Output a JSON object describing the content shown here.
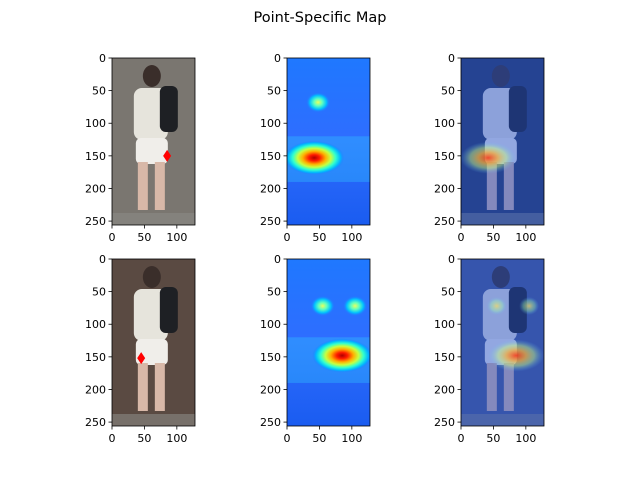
{
  "chart_data": {
    "type": "heatmap",
    "title": "Point-Specific Map",
    "layout": {
      "rows": 2,
      "cols": 3
    },
    "x_ticks": [
      0,
      50,
      100
    ],
    "y_ticks": [
      0,
      50,
      100,
      150,
      200,
      250
    ],
    "xlim": [
      0,
      128
    ],
    "ylim": [
      256,
      0
    ],
    "colormap": "jet",
    "panels": [
      {
        "row": 0,
        "col": 0,
        "kind": "image",
        "background": "#7a7670",
        "marker": {
          "shape": "diamond",
          "color": "#ff0000",
          "x": 85,
          "y": 150
        }
      },
      {
        "row": 0,
        "col": 1,
        "kind": "heatmap",
        "hotspots": [
          {
            "x": 42,
            "y": 153,
            "peak": 1.0
          },
          {
            "x": 48,
            "y": 68,
            "peak": 0.55
          }
        ]
      },
      {
        "row": 0,
        "col": 2,
        "kind": "overlay",
        "background": "#2a3a5a",
        "hotspots": [
          {
            "x": 42,
            "y": 153,
            "peak": 1.0
          }
        ]
      },
      {
        "row": 1,
        "col": 0,
        "kind": "image",
        "background": "#5a4a42",
        "marker": {
          "shape": "diamond",
          "color": "#ff0000",
          "x": 45,
          "y": 152
        }
      },
      {
        "row": 1,
        "col": 1,
        "kind": "heatmap",
        "hotspots": [
          {
            "x": 85,
            "y": 148,
            "peak": 1.0
          },
          {
            "x": 55,
            "y": 72,
            "peak": 0.6
          },
          {
            "x": 105,
            "y": 72,
            "peak": 0.6
          }
        ]
      },
      {
        "row": 1,
        "col": 2,
        "kind": "overlay",
        "background": "#4a5a8a",
        "hotspots": [
          {
            "x": 85,
            "y": 148,
            "peak": 1.0
          },
          {
            "x": 55,
            "y": 72,
            "peak": 0.4
          },
          {
            "x": 105,
            "y": 72,
            "peak": 0.4
          }
        ]
      }
    ]
  }
}
